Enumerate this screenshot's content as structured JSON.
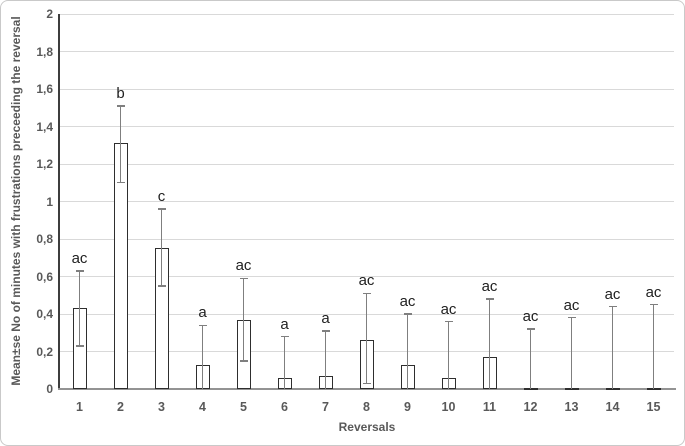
{
  "chart_data": {
    "type": "bar",
    "title": "",
    "xlabel": "Reversals",
    "ylabel": "Mean±se No of minutes with frustrations preceeding the reversal",
    "categories": [
      "1",
      "2",
      "3",
      "4",
      "5",
      "6",
      "7",
      "8",
      "9",
      "10",
      "11",
      "12",
      "13",
      "14",
      "15"
    ],
    "values": [
      0.43,
      1.31,
      0.75,
      0.13,
      0.37,
      0.06,
      0.07,
      0.26,
      0.13,
      0.06,
      0.17,
      0.006,
      0.004,
      0.004,
      0.004
    ],
    "error_high": [
      0.63,
      1.51,
      0.96,
      0.34,
      0.59,
      0.28,
      0.31,
      0.51,
      0.4,
      0.36,
      0.48,
      0.32,
      0.38,
      0.44,
      0.45
    ],
    "error_low": [
      0.23,
      1.1,
      0.55,
      0,
      0.15,
      0,
      0,
      0.03,
      0,
      0,
      0,
      0,
      0,
      0,
      0
    ],
    "sig_letters": [
      "ac",
      "b",
      "c",
      "a",
      "ac",
      "a",
      "a",
      "ac",
      "ac",
      "ac",
      "ac",
      "ac",
      "ac",
      "ac",
      "ac"
    ],
    "ylim": [
      0,
      2
    ],
    "ytick_step": 0.2,
    "decimal_separator": ",",
    "grid": "horizontal",
    "legend": "none",
    "colors": {
      "bar_fill": "#ffffff",
      "bar_border": "#2e2e2e",
      "error_bar": "#7f7f7f",
      "gridline": "#d9d9d9",
      "axis_text": "#595959",
      "sig_letter": "#1f1f1f",
      "y_axis_line": "#3d3d3d",
      "x_axis_line": "#939393"
    }
  }
}
